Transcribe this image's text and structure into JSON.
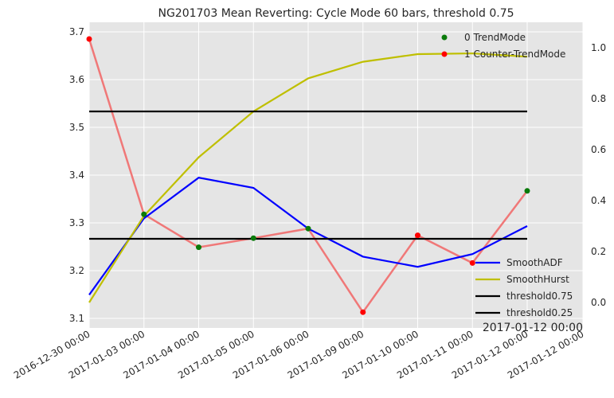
{
  "chart_data": {
    "type": "line",
    "title": "NG201703 Mean Reverting: Cycle Mode 60 bars, threshold 0.75",
    "xlabel": "",
    "ylabel": "",
    "x_tick_labels": [
      "2016-12-30 00:00",
      "2017-01-03 00:00",
      "2017-01-04 00:00",
      "2017-01-05 00:00",
      "2017-01-06 00:00",
      "2017-01-09 00:00",
      "2017-01-10 00:00",
      "2017-01-11 00:00",
      "2017-01-12 00:00",
      "2017-01-12 00:00"
    ],
    "x_offset_label": "2017-01-12 00:00",
    "ylim_left": [
      3.08,
      3.72
    ],
    "ylim_right": [
      -0.1,
      1.1
    ],
    "yticks_left": [
      3.1,
      3.2,
      3.3,
      3.4,
      3.5,
      3.6,
      3.7
    ],
    "yticks_right": [
      0.0,
      0.2,
      0.4,
      0.6,
      0.8,
      1.0
    ],
    "grid": true,
    "price_series": {
      "axis": "left",
      "color": "#f07878",
      "values": [
        3.685,
        3.318,
        3.249,
        3.268,
        3.288,
        3.113,
        3.274,
        3.216,
        3.367
      ]
    },
    "scatter_series": [
      {
        "name": "0 TrendMode",
        "color": "#0a7a0a",
        "indices": [
          1,
          2,
          3,
          4,
          8
        ]
      },
      {
        "name": "1 Counter-TrendMode",
        "color": "#ff0000",
        "indices": [
          0,
          5,
          6,
          7
        ]
      }
    ],
    "series": [
      {
        "name": "SmoothADF",
        "axis": "right",
        "color": "#0000ff",
        "values": [
          0.03,
          0.33,
          0.49,
          0.45,
          0.29,
          0.18,
          0.14,
          0.19,
          0.3
        ]
      },
      {
        "name": "SmoothHurst",
        "axis": "right",
        "color": "#bfbf00",
        "values": [
          0.0,
          0.34,
          0.57,
          0.75,
          0.88,
          0.945,
          0.975,
          0.978,
          0.965
        ]
      },
      {
        "name": "threshold0.75",
        "axis": "right",
        "color": "#000000",
        "values": [
          0.75,
          0.75,
          0.75,
          0.75,
          0.75,
          0.75,
          0.75,
          0.75,
          0.75
        ]
      },
      {
        "name": "threshold0.25",
        "axis": "right",
        "color": "#000000",
        "values": [
          0.25,
          0.25,
          0.25,
          0.25,
          0.25,
          0.25,
          0.25,
          0.25,
          0.25
        ]
      }
    ],
    "legend_scatter_placement": "top-right",
    "legend_lines_placement": "lower-right"
  }
}
